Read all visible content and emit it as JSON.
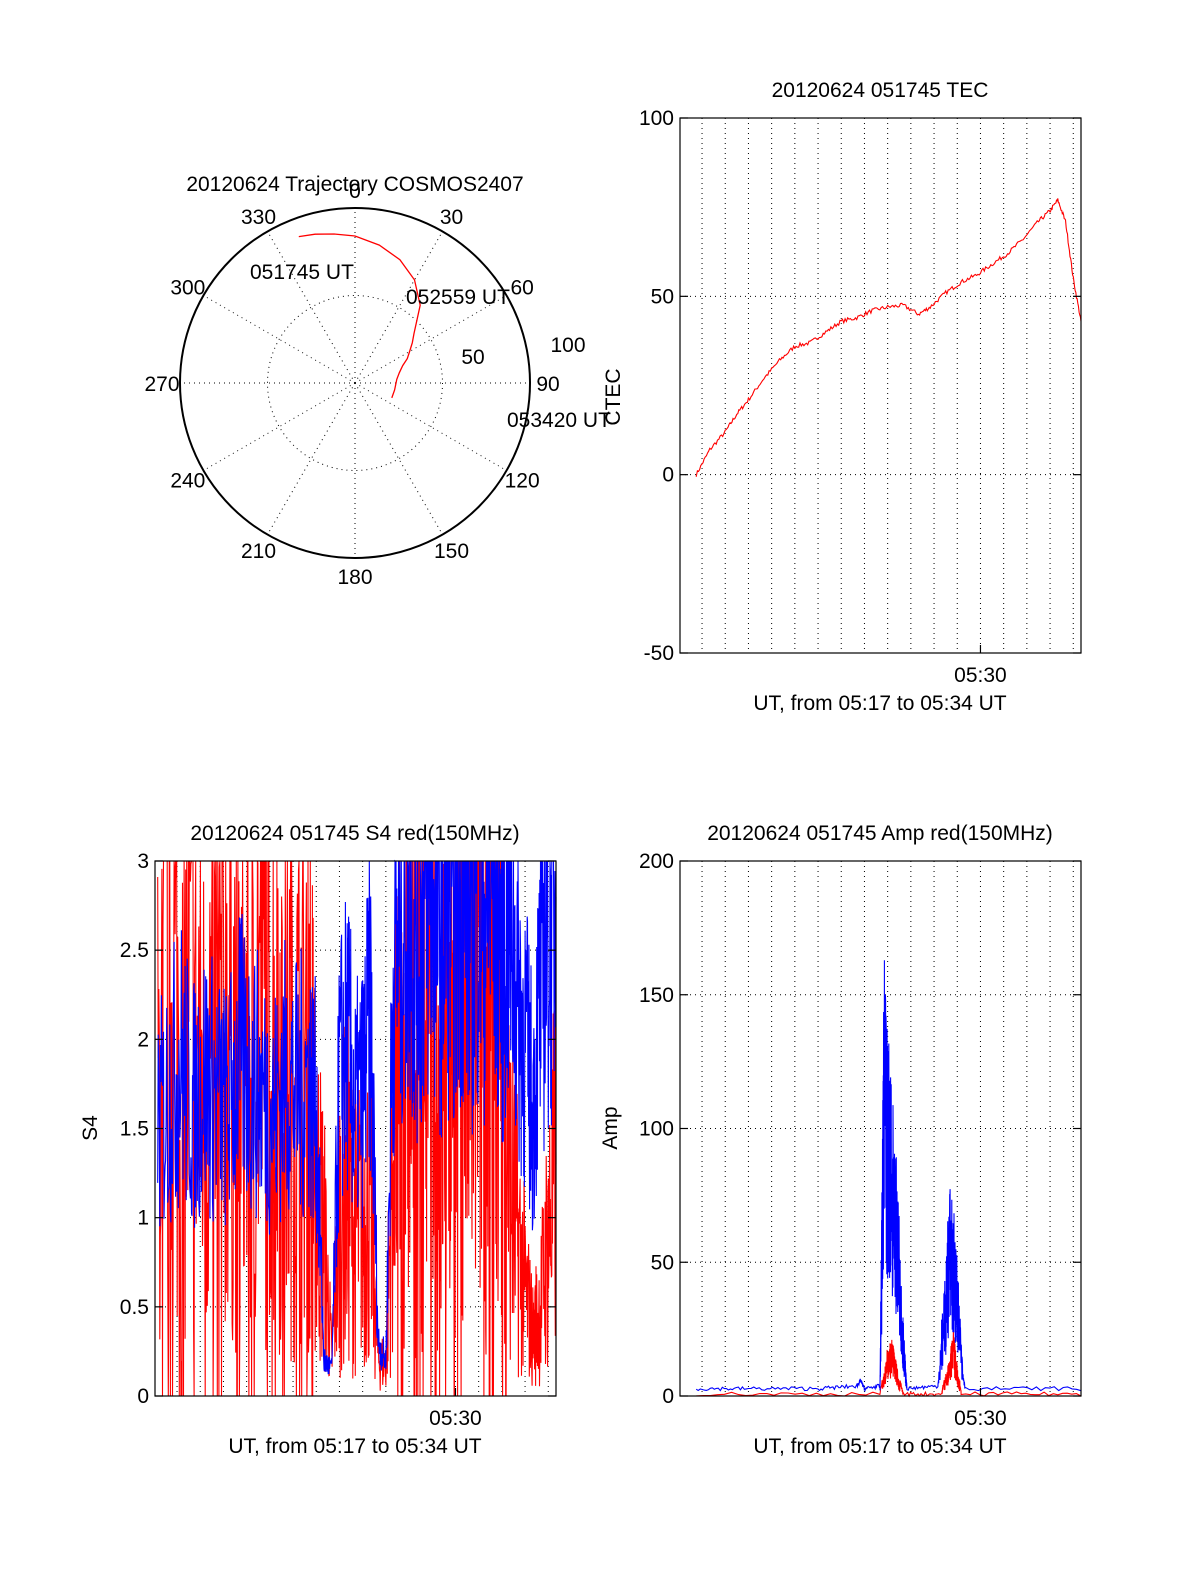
{
  "colors": {
    "red": "#ff0000",
    "blue": "#0000ff",
    "axis": "#000000",
    "background": "#ffffff"
  },
  "chart_data": [
    {
      "id": "polar",
      "type": "polar-trajectory",
      "title": "20120624 Trajectory COSMOS2407",
      "rlim": [
        0,
        100
      ],
      "radial_tick_labels": [
        "50",
        "100"
      ],
      "angle_labels": [
        "0",
        "30",
        "60",
        "90",
        "120",
        "150",
        "180",
        "210",
        "240",
        "270",
        "300",
        "330"
      ],
      "angles": [
        0,
        30,
        60,
        90,
        120,
        150,
        180,
        210,
        240,
        270,
        300,
        330
      ],
      "trajectory": {
        "color": "red",
        "zenith": [
          89.6,
          88,
          86,
          84,
          80,
          75,
          68,
          58,
          44,
          40,
          36,
          33,
          29,
          26,
          24,
          23,
          22.7
        ],
        "azimuth": [
          -21,
          -15,
          -8,
          0,
          10,
          20,
          30,
          40,
          50,
          55,
          60,
          65,
          70,
          77,
          85,
          100,
          112
        ]
      },
      "annotations": [
        {
          "text": "051745 UT",
          "zenith": 91,
          "azimuth": -22
        },
        {
          "text": "052559 UT",
          "zenith": 66,
          "azimuth": 53
        },
        {
          "text": "053420 UT",
          "zenith": 53,
          "azimuth": 109
        }
      ]
    },
    {
      "id": "tec",
      "type": "line",
      "title": "20120624 051745 TEC",
      "xlabel": "UT, from 05:17 to 05:34 UT",
      "ylabel": "CTEC",
      "xlim": [
        "05:17:03",
        "05:34:20"
      ],
      "xtick_labels": [
        {
          "x": "05:30:00",
          "label": "05:30"
        }
      ],
      "xgrid": [
        "05:18:00",
        "05:19:00",
        "05:20:00",
        "05:21:00",
        "05:22:00",
        "05:23:00",
        "05:24:00",
        "05:25:00",
        "05:26:00",
        "05:27:00",
        "05:28:00",
        "05:29:00",
        "05:30:00",
        "05:31:00",
        "05:32:00",
        "05:33:00",
        "05:34:00"
      ],
      "ylim": [
        -50,
        100
      ],
      "yticks": [
        -50,
        0,
        50,
        100
      ],
      "ytick_labels": [
        "-50",
        "0",
        "50",
        "100"
      ],
      "series": [
        {
          "color": "red",
          "x": [
            "05:17:45",
            "05:18:20",
            "05:19:00",
            "05:19:30",
            "05:20:00",
            "05:20:40",
            "05:21:20",
            "05:22:00",
            "05:22:40",
            "05:23:20",
            "05:24:00",
            "05:24:40",
            "05:25:20",
            "05:26:00",
            "05:26:40",
            "05:27:20",
            "05:27:50",
            "05:28:30",
            "05:29:10",
            "05:29:50",
            "05:30:30",
            "05:31:10",
            "05:31:50",
            "05:32:30",
            "05:33:00",
            "05:33:20",
            "05:33:40",
            "05:34:00",
            "05:34:20"
          ],
          "y": [
            0,
            7,
            12,
            17,
            21,
            27,
            32,
            36,
            37,
            40,
            43,
            44,
            46,
            47,
            47.5,
            45,
            47,
            51,
            54,
            56,
            59,
            62,
            66,
            71,
            74,
            77,
            71,
            55,
            43
          ]
        }
      ]
    },
    {
      "id": "s4",
      "type": "line",
      "title": "20120624 051745 S4 red(150MHz)",
      "xlabel": "UT, from 05:17 to 05:34 UT",
      "ylabel": "S4",
      "xlim": [
        "05:17:03",
        "05:34:20"
      ],
      "xtick_labels": [
        {
          "x": "05:30:00",
          "label": "05:30"
        }
      ],
      "xgrid": [
        "05:18:00",
        "05:19:00",
        "05:20:00",
        "05:21:00",
        "05:22:00",
        "05:23:00",
        "05:24:00",
        "05:25:00",
        "05:26:00",
        "05:27:00",
        "05:28:00",
        "05:29:00",
        "05:30:00",
        "05:31:00",
        "05:32:00",
        "05:33:00",
        "05:34:00"
      ],
      "ylim": [
        0,
        3
      ],
      "yticks": [
        0,
        0.5,
        1,
        1.5,
        2,
        2.5,
        3
      ],
      "ytick_labels": [
        "0",
        "0.5",
        "1",
        "1.5",
        "2",
        "2.5",
        "3"
      ],
      "series": [
        {
          "color": "red",
          "x": [
            "05:17:10",
            "05:17:40",
            "05:18:10",
            "05:18:40",
            "05:19:10",
            "05:19:40",
            "05:20:10",
            "05:20:40",
            "05:21:10",
            "05:21:40",
            "05:22:10",
            "05:22:40",
            "05:23:10",
            "05:23:40",
            "05:24:00",
            "05:24:20",
            "05:24:40",
            "05:25:00",
            "05:25:20",
            "05:25:40",
            "05:26:00",
            "05:26:20",
            "05:26:40",
            "05:27:00",
            "05:27:20",
            "05:27:40",
            "05:28:00",
            "05:28:20",
            "05:28:40",
            "05:29:00",
            "05:29:20",
            "05:29:40",
            "05:30:00",
            "05:30:20",
            "05:30:40",
            "05:31:00",
            "05:31:20",
            "05:31:40",
            "05:32:00",
            "05:32:20",
            "05:32:40",
            "05:33:00",
            "05:33:20",
            "05:33:40",
            "05:34:00",
            "05:34:20"
          ],
          "y": [
            1.6,
            2.4,
            1.9,
            2.2,
            1.7,
            2.1,
            2.3,
            1.8,
            2.0,
            2.4,
            2.2,
            1.9,
            1.8,
            2.1,
            1.2,
            0.9,
            0.2,
            1.0,
            1.2,
            0.9,
            1.0,
            1.1,
            0.2,
            0.18,
            1.5,
            1.9,
            2.3,
            2.0,
            2.6,
            2.2,
            1.5,
            2.4,
            2.7,
            2.5,
            2.1,
            2.6,
            2.2,
            2.4,
            2.1,
            1.2,
            0.9,
            0.6,
            0.35,
            0.5,
            0.9,
            1.3
          ]
        },
        {
          "color": "blue",
          "x": [
            "05:17:10",
            "05:17:40",
            "05:18:10",
            "05:18:40",
            "05:19:10",
            "05:19:40",
            "05:20:10",
            "05:20:40",
            "05:21:10",
            "05:21:40",
            "05:22:10",
            "05:22:40",
            "05:23:10",
            "05:23:40",
            "05:24:00",
            "05:24:20",
            "05:24:40",
            "05:25:00",
            "05:25:20",
            "05:25:40",
            "05:26:00",
            "05:26:20",
            "05:26:40",
            "05:27:00",
            "05:27:20",
            "05:27:40",
            "05:28:00",
            "05:28:20",
            "05:28:40",
            "05:29:00",
            "05:29:20",
            "05:29:40",
            "05:30:00",
            "05:30:20",
            "05:30:40",
            "05:31:00",
            "05:31:20",
            "05:31:40",
            "05:32:00",
            "05:32:20",
            "05:32:40",
            "05:33:00",
            "05:33:20",
            "05:33:40",
            "05:34:00",
            "05:34:20"
          ],
          "y": [
            1.5,
            1.7,
            1.9,
            1.6,
            1.8,
            1.7,
            1.6,
            1.9,
            1.8,
            1.7,
            1.6,
            1.8,
            1.7,
            1.8,
            1.6,
            0.2,
            0.15,
            1.8,
            2.0,
            1.6,
            1.7,
            2.2,
            0.3,
            0.2,
            2.4,
            2.6,
            2.8,
            2.5,
            2.7,
            2.9,
            2.6,
            2.8,
            2.7,
            2.9,
            2.6,
            2.8,
            2.7,
            2.9,
            2.5,
            2.7,
            2.3,
            2.0,
            1.6,
            2.3,
            2.6,
            2.8
          ]
        }
      ]
    },
    {
      "id": "amp",
      "type": "line",
      "title": "20120624 051745 Amp red(150MHz)",
      "xlabel": "UT, from 05:17 to 05:34 UT",
      "ylabel": "Amp",
      "xlim": [
        "05:17:03",
        "05:34:20"
      ],
      "xtick_labels": [
        {
          "x": "05:30:00",
          "label": "05:30"
        }
      ],
      "xgrid": [
        "05:18:00",
        "05:19:00",
        "05:20:00",
        "05:21:00",
        "05:22:00",
        "05:23:00",
        "05:24:00",
        "05:25:00",
        "05:26:00",
        "05:27:00",
        "05:28:00",
        "05:29:00",
        "05:30:00",
        "05:31:00",
        "05:32:00",
        "05:33:00",
        "05:34:00"
      ],
      "ylim": [
        0,
        200
      ],
      "yticks": [
        0,
        50,
        100,
        150,
        200
      ],
      "ytick_labels": [
        "0",
        "50",
        "100",
        "150",
        "200"
      ],
      "series": [
        {
          "color": "red",
          "x": [
            "05:17:45",
            "05:25:40",
            "05:25:50",
            "05:26:00",
            "05:26:10",
            "05:26:20",
            "05:26:30",
            "05:26:40",
            "05:28:20",
            "05:28:30",
            "05:28:40",
            "05:28:50",
            "05:29:00",
            "05:29:10",
            "05:34:20"
          ],
          "y": [
            0,
            0,
            8,
            20,
            22,
            15,
            6,
            0,
            0,
            8,
            15,
            25,
            12,
            0,
            0
          ]
        },
        {
          "color": "blue",
          "x": [
            "05:17:45",
            "05:20:00",
            "05:23:00",
            "05:24:40",
            "05:24:50",
            "05:25:00",
            "05:25:40",
            "05:25:45",
            "05:25:50",
            "05:26:00",
            "05:26:10",
            "05:26:20",
            "05:26:30",
            "05:26:40",
            "05:26:50",
            "05:28:10",
            "05:28:20",
            "05:28:30",
            "05:28:40",
            "05:28:50",
            "05:29:00",
            "05:29:10",
            "05:29:20",
            "05:34:20"
          ],
          "y": [
            2,
            2,
            2,
            3,
            5,
            2,
            3,
            80,
            170,
            140,
            120,
            100,
            70,
            30,
            2,
            3,
            30,
            50,
            80,
            70,
            60,
            20,
            2,
            2
          ]
        }
      ]
    }
  ]
}
